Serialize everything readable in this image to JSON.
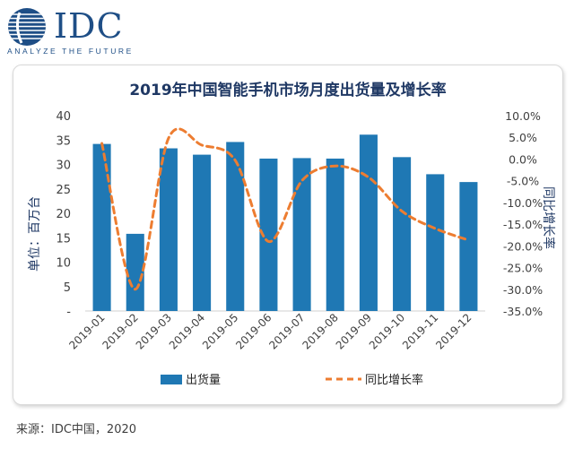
{
  "logo": {
    "wordmark": "IDC",
    "tagline": "ANALYZE THE FUTURE",
    "brand_color": "#1e4e86",
    "icon": "idc-globe-icon"
  },
  "chart_data": {
    "type": "bar",
    "title": "2019年中国智能手机市场月度出货量及增长率",
    "categories": [
      "2019-01",
      "2019-02",
      "2019-03",
      "2019-04",
      "2019-05",
      "2019-06",
      "2019-07",
      "2019-08",
      "2019-09",
      "2019-10",
      "2019-11",
      "2019-12"
    ],
    "series": [
      {
        "name": "出货量",
        "type": "bar",
        "axis": "left",
        "color": "#1f78b4",
        "values": [
          34.2,
          15.8,
          33.3,
          32.0,
          34.6,
          31.2,
          31.3,
          31.2,
          36.1,
          31.5,
          28.0,
          26.4
        ]
      },
      {
        "name": "同比增长率",
        "type": "line",
        "style": "dashed",
        "axis": "right",
        "color": "#ed7d31",
        "values": [
          3.6,
          -30.0,
          4.8,
          3.2,
          -0.3,
          -19.0,
          -5.0,
          -1.6,
          -4.2,
          -12.0,
          -16.0,
          -18.7
        ]
      }
    ],
    "ylabel": "单位：百万台",
    "y2label": "同比增长率",
    "ylim": [
      0,
      40
    ],
    "y_ticks": [
      "-",
      "5",
      "10",
      "15",
      "20",
      "25",
      "30",
      "35",
      "40"
    ],
    "y2lim": [
      -35,
      10
    ],
    "y2_ticks": [
      "-35.0%",
      "-30.0%",
      "-25.0%",
      "-20.0%",
      "-15.0%",
      "-10.0%",
      "-5.0%",
      "0.0%",
      "5.0%",
      "10.0%"
    ],
    "grid": false,
    "legend_position": "bottom"
  },
  "source": "来源：IDC中国，2020"
}
